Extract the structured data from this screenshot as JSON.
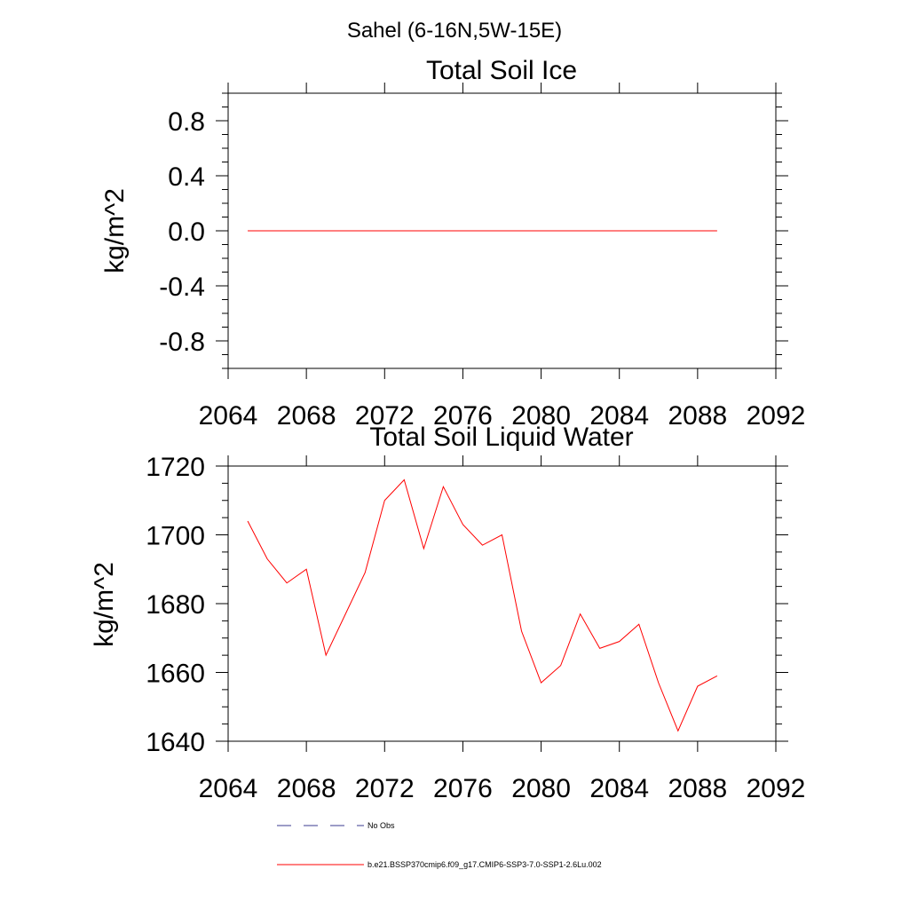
{
  "suptitle": "Sahel (6-16N,5W-15E)",
  "chart_data": [
    {
      "type": "line",
      "title": "Total Soil Ice",
      "xlabel": "",
      "ylabel": "kg/m^2",
      "xlim": [
        2064,
        2092
      ],
      "ylim": [
        -1.0,
        1.0
      ],
      "xticks": [
        2064,
        2068,
        2072,
        2076,
        2080,
        2084,
        2088,
        2092
      ],
      "xtick_labels": [
        "2064",
        "2068",
        "2072",
        "2076",
        "2080",
        "2084",
        "2088",
        "2092"
      ],
      "yticks": [
        0.8,
        0.4,
        0.0,
        -0.4,
        -0.8
      ],
      "ytick_labels": [
        "0.8",
        "0.4",
        "0.0",
        "-0.4",
        "-0.8"
      ],
      "grid": false,
      "series": [
        {
          "name": "b.e21.BSSP370cmip6.f09_g17.CMIP6-SSP3-7.0-SSP1-2.6Lu.002",
          "color": "#ff0000",
          "x": [
            2065,
            2066,
            2067,
            2068,
            2069,
            2070,
            2071,
            2072,
            2073,
            2074,
            2075,
            2076,
            2077,
            2078,
            2079,
            2080,
            2081,
            2082,
            2083,
            2084,
            2085,
            2086,
            2087,
            2088,
            2089
          ],
          "values": [
            0,
            0,
            0,
            0,
            0,
            0,
            0,
            0,
            0,
            0,
            0,
            0,
            0,
            0,
            0,
            0,
            0,
            0,
            0,
            0,
            0,
            0,
            0,
            0,
            0
          ]
        }
      ]
    },
    {
      "type": "line",
      "title": "Total Soil Liquid Water",
      "xlabel": "",
      "ylabel": "kg/m^2",
      "xlim": [
        2064,
        2092
      ],
      "ylim": [
        1640,
        1720
      ],
      "xticks": [
        2064,
        2068,
        2072,
        2076,
        2080,
        2084,
        2088,
        2092
      ],
      "xtick_labels": [
        "2064",
        "2068",
        "2072",
        "2076",
        "2080",
        "2084",
        "2088",
        "2092"
      ],
      "yticks": [
        1720,
        1700,
        1680,
        1660,
        1640
      ],
      "ytick_labels": [
        "1720",
        "1700",
        "1680",
        "1660",
        "1640"
      ],
      "grid": false,
      "series": [
        {
          "name": "b.e21.BSSP370cmip6.f09_g17.CMIP6-SSP3-7.0-SSP1-2.6Lu.002",
          "color": "#ff0000",
          "x": [
            2065,
            2066,
            2067,
            2068,
            2069,
            2070,
            2071,
            2072,
            2073,
            2074,
            2075,
            2076,
            2077,
            2078,
            2079,
            2080,
            2081,
            2082,
            2083,
            2084,
            2085,
            2086,
            2087,
            2088,
            2089
          ],
          "values": [
            1704,
            1693,
            1686,
            1690,
            1665,
            1677,
            1689,
            1710,
            1716,
            1696,
            1714,
            1703,
            1697,
            1700,
            1672,
            1657,
            1662,
            1677,
            1667,
            1669,
            1674,
            1657,
            1643,
            1656,
            1659
          ]
        }
      ]
    }
  ],
  "legend": {
    "items": [
      {
        "label": "No Obs",
        "style": "dashed",
        "color": "#3b3b8f"
      },
      {
        "label": "b.e21.BSSP370cmip6.f09_g17.CMIP6-SSP3-7.0-SSP1-2.6Lu.002",
        "style": "solid",
        "color": "#ff0000"
      }
    ]
  }
}
